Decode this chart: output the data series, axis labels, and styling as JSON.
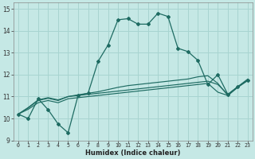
{
  "xlabel": "Humidex (Indice chaleur)",
  "background_color": "#c5e8e5",
  "grid_color": "#a8d4d0",
  "line_color": "#1e6b62",
  "xlim": [
    -0.5,
    23.5
  ],
  "ylim": [
    9.0,
    15.3
  ],
  "xtick_vals": [
    0,
    1,
    2,
    3,
    4,
    5,
    6,
    7,
    8,
    9,
    10,
    11,
    12,
    13,
    14,
    15,
    16,
    17,
    18,
    19,
    20,
    21,
    22,
    23
  ],
  "ytick_vals": [
    9,
    10,
    11,
    12,
    13,
    14,
    15
  ],
  "curve_main": [
    10.2,
    10.0,
    10.9,
    10.4,
    9.75,
    9.35,
    11.05,
    11.15,
    12.6,
    13.35,
    14.5,
    14.55,
    14.3,
    14.3,
    14.8,
    14.65,
    13.2,
    13.05,
    12.65,
    11.55,
    12.0,
    11.1,
    11.45,
    11.75
  ],
  "curve_flat1": [
    10.2,
    10.5,
    10.85,
    10.95,
    10.85,
    11.0,
    11.05,
    11.1,
    11.15,
    11.2,
    11.25,
    11.3,
    11.35,
    11.4,
    11.45,
    11.5,
    11.55,
    11.6,
    11.65,
    11.7,
    11.55,
    11.1,
    11.45,
    11.75
  ],
  "curve_flat2": [
    10.2,
    10.42,
    10.72,
    10.82,
    10.72,
    10.9,
    10.95,
    11.0,
    11.05,
    11.1,
    11.15,
    11.2,
    11.25,
    11.3,
    11.35,
    11.4,
    11.45,
    11.5,
    11.55,
    11.6,
    11.2,
    11.05,
    11.42,
    11.73
  ],
  "curve_flat3": [
    10.2,
    10.48,
    10.82,
    10.92,
    10.82,
    11.0,
    11.08,
    11.15,
    11.22,
    11.32,
    11.42,
    11.5,
    11.55,
    11.6,
    11.65,
    11.7,
    11.75,
    11.8,
    11.9,
    11.95,
    11.6,
    11.05,
    11.45,
    11.8
  ]
}
